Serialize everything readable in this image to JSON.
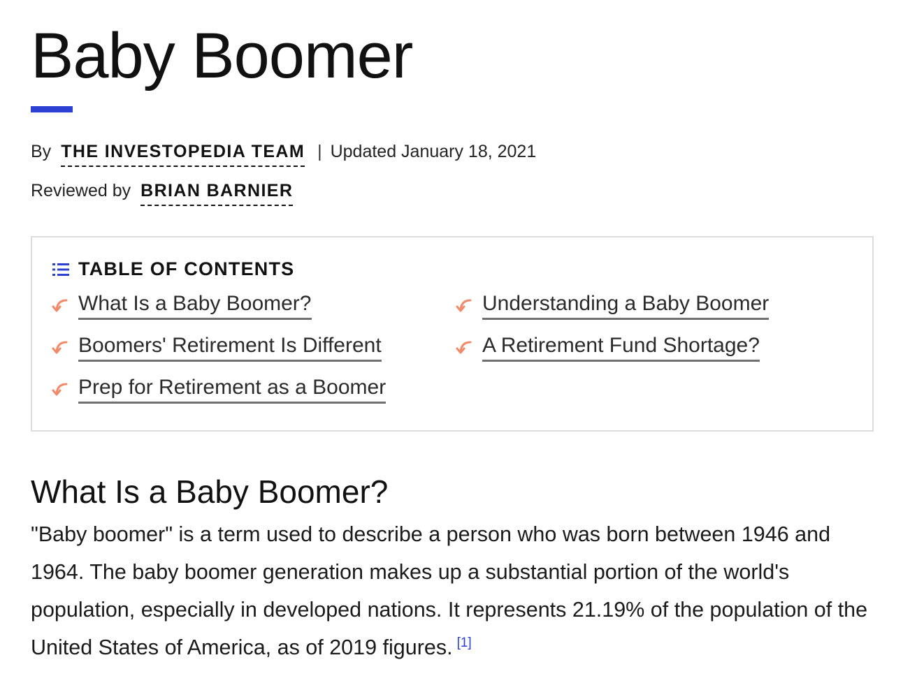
{
  "article": {
    "title": "Baby Boomer"
  },
  "byline": {
    "by_label": "By",
    "author": "THE INVESTOPEDIA TEAM",
    "separator": "|",
    "updated": "Updated January 18, 2021",
    "reviewed_label": "Reviewed by",
    "reviewer": "BRIAN BARNIER"
  },
  "toc": {
    "header": "TABLE OF CONTENTS",
    "items": [
      "What Is a Baby Boomer?",
      "Understanding a Baby Boomer",
      "Boomers' Retirement Is Different",
      "A Retirement Fund Shortage?",
      "Prep for Retirement as a Boomer"
    ]
  },
  "section": {
    "heading": "What Is a Baby Boomer?",
    "body": "\"Baby boomer\" is a term used to describe a person who was born between 1946 and 1964. The baby boomer generation makes up a substantial portion of the world's population, especially in developed nations. It represents 21.19% of the population of the United States of America, as of 2019 figures.",
    "citation": "[1]"
  },
  "colors": {
    "accent": "#2c40d4",
    "toc_arrow": "#f08a6a",
    "toc_border": "#dcdcdc"
  },
  "icons": {
    "toc_header": "list-icon",
    "toc_item": "curved-arrow-icon"
  }
}
